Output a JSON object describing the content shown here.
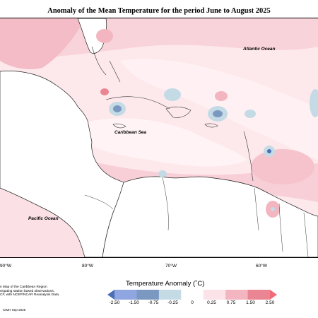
{
  "title": "Anomaly of the Mean Temperature for the period June to August 2025",
  "map": {
    "labels": {
      "atlantic": "Atlantic Ocean",
      "caribbean": "Caribbean Sea",
      "pacific": "Pacific Ocean"
    },
    "lon_ticks": [
      "90°W",
      "80°W",
      "70°W",
      "60°W"
    ]
  },
  "note": {
    "line1": "n Map of the Caribbean Region",
    "line2": "regating station based observations,",
    "line3": "CF, with NCEP/NCAR Reanalysis Data."
  },
  "credit": "CIMH Sep-2025",
  "legend": {
    "title": "Temperature Anomaly (˚C)",
    "labels": [
      "-2.50",
      "-1.50",
      "-0.75",
      "-0.25",
      "0",
      "0.25",
      "0.75",
      "1.50",
      "2.50"
    ],
    "colors": [
      "#4a6fb8",
      "#8fa6e0",
      "#7a98c0",
      "#c4dbe6",
      "#ffffff",
      "#fbe3e8",
      "#f3b6c1",
      "#ea8593",
      "#f26b76"
    ]
  }
}
